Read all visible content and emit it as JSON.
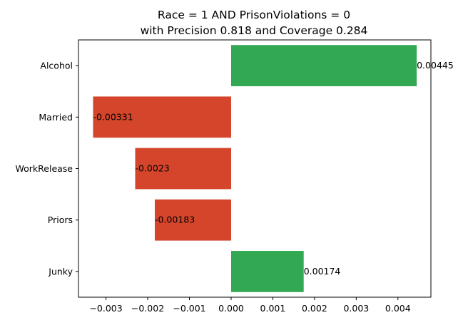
{
  "chart_data": {
    "type": "bar",
    "orientation": "horizontal",
    "title_lines": [
      "Race = 1 AND PrisonViolations = 0",
      "with Precision 0.818 and Coverage 0.284"
    ],
    "xlabel": "",
    "ylabel": "",
    "categories": [
      "Alcohol",
      "Married",
      "WorkRelease",
      "Priors",
      "Junky"
    ],
    "values": [
      0.00445,
      -0.00331,
      -0.0023,
      -0.00183,
      0.00174
    ],
    "value_labels": [
      "0.00445",
      "-0.00331",
      "-0.0023",
      "-0.00183",
      "0.00174"
    ],
    "xlim": [
      -0.00366,
      0.00479
    ],
    "xticks": [
      -0.003,
      -0.002,
      -0.001,
      0.0,
      0.001,
      0.002,
      0.003,
      0.004
    ],
    "xtick_labels": [
      "−0.003",
      "−0.002",
      "−0.001",
      "0.000",
      "0.001",
      "0.002",
      "0.003",
      "0.004"
    ],
    "grid": false,
    "legend": "none",
    "colors": {
      "positive": "#33a852",
      "negative": "#d4452b"
    }
  }
}
